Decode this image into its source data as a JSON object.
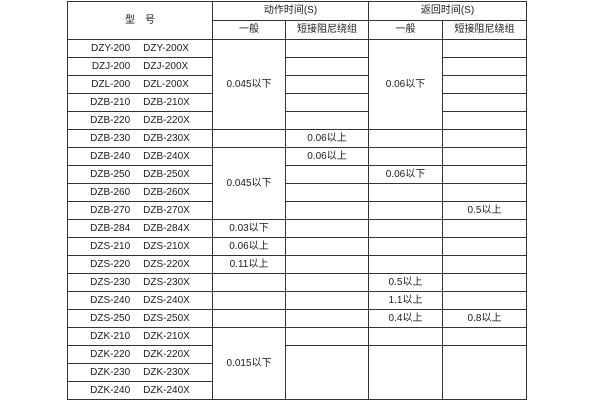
{
  "colors": {
    "background": "#ffffff",
    "border": "#333333",
    "text": "#1a1a1a"
  },
  "table": {
    "header": {
      "model": "型　号",
      "action": "动作时间(S)",
      "return": "返回时间(S)",
      "general": "一般",
      "damping": "短接阻尼绕组"
    },
    "rows": [
      {
        "m1": "DZY-200",
        "m2": "DZY-200X",
        "a_gen": "0.045以下",
        "a_short": "",
        "r_gen": "0.06以下",
        "r_short": ""
      },
      {
        "m1": "DZJ-200",
        "m2": "DZJ-200X",
        "a_short": "",
        "r_short": ""
      },
      {
        "m1": "DZL-200",
        "m2": "DZL-200X",
        "a_short": "",
        "r_short": ""
      },
      {
        "m1": "DZB-210",
        "m2": "DZB-210X",
        "a_short": "",
        "r_short": ""
      },
      {
        "m1": "DZB-220",
        "m2": "DZB-220X",
        "a_short": "",
        "r_short": ""
      },
      {
        "m1": "DZB-230",
        "m2": "DZB-230X",
        "a_gen": "",
        "a_short": "0.06以上",
        "r_gen": "",
        "r_short": ""
      },
      {
        "m1": "DZB-240",
        "m2": "DZB-240X",
        "a_gen": "0.045以下",
        "a_short": "0.06以上",
        "r_gen": "",
        "r_short": ""
      },
      {
        "m1": "DZB-250",
        "m2": "DZB-250X",
        "a_short": "",
        "r_gen": "0.06以下",
        "r_short": ""
      },
      {
        "m1": "DZB-260",
        "m2": "DZB-260X",
        "a_short": "",
        "r_gen": "",
        "r_short": ""
      },
      {
        "m1": "DZB-270",
        "m2": "DZB-270X",
        "a_short": "",
        "r_gen": "",
        "r_short": "0.5以上"
      },
      {
        "m1": "DZB-284",
        "m2": "DZB-284X",
        "a_gen": "0.03以下",
        "a_short": "",
        "r_gen": "",
        "r_short": ""
      },
      {
        "m1": "DZS-210",
        "m2": "DZS-210X",
        "a_gen": "0.06以上",
        "a_short": "",
        "r_gen": "",
        "r_short": ""
      },
      {
        "m1": "DZS-220",
        "m2": "DZS-220X",
        "a_gen": "0.11以上",
        "a_short": "",
        "r_gen": "",
        "r_short": ""
      },
      {
        "m1": "DZS-230",
        "m2": "DZS-230X",
        "a_gen": "",
        "a_short": "",
        "r_gen": "0.5以上",
        "r_short": ""
      },
      {
        "m1": "DZS-240",
        "m2": "DZS-240X",
        "a_gen": "",
        "a_short": "",
        "r_gen": "1.1以上",
        "r_short": ""
      },
      {
        "m1": "DZS-250",
        "m2": "DZS-250X",
        "a_gen": "",
        "a_short": "",
        "r_gen": "0.4以上",
        "r_short": "0.8以上"
      },
      {
        "m1": "DZK-210",
        "m2": "DZK-210X",
        "a_gen": "0.015以下",
        "a_short": "",
        "r_gen": "",
        "r_short": ""
      },
      {
        "m1": "DZK-220",
        "m2": "DZK-220X",
        "a_short": "",
        "r_gen": "",
        "r_short": ""
      },
      {
        "m1": "DZK-230",
        "m2": "DZK-230X"
      },
      {
        "m1": "DZK-240",
        "m2": "DZK-240X"
      }
    ]
  }
}
